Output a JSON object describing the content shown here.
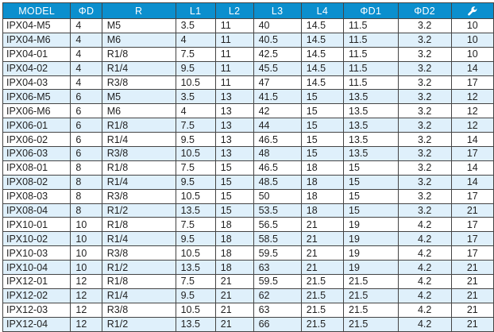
{
  "table": {
    "headers": [
      "MODEL",
      "ΦD",
      "R",
      "L1",
      "L2",
      "L3",
      "L4",
      "ΦD1",
      "ΦD2"
    ],
    "last_header_icon": "wrench-icon",
    "colors": {
      "header_bg": "#0b8fce",
      "stripe_bg": "#dff0fb",
      "border": "#444444"
    },
    "rows": [
      [
        "IPX04-M5",
        "4",
        "M5",
        "3.5",
        "11",
        "40",
        "14.5",
        "11.5",
        "3.2",
        "10"
      ],
      [
        "IPX04-M6",
        "4",
        "M6",
        "4",
        "11",
        "40.5",
        "14.5",
        "11.5",
        "3.2",
        "10"
      ],
      [
        "IPX04-01",
        "4",
        "R1/8",
        "7.5",
        "11",
        "42.5",
        "14.5",
        "11.5",
        "3.2",
        "10"
      ],
      [
        "IPX04-02",
        "4",
        "R1/4",
        "9.5",
        "11",
        "45.5",
        "14.5",
        "11.5",
        "3.2",
        "14"
      ],
      [
        "IPX04-03",
        "4",
        "R3/8",
        "10.5",
        "11",
        "47",
        "14.5",
        "11.5",
        "3.2",
        "17"
      ],
      [
        "IPX06-M5",
        "6",
        "M5",
        "3.5",
        "13",
        "41.5",
        "15",
        "13.5",
        "3.2",
        "12"
      ],
      [
        "IPX06-M6",
        "6",
        "M6",
        "4",
        "13",
        "42",
        "15",
        "13.5",
        "3.2",
        "12"
      ],
      [
        "IPX06-01",
        "6",
        "R1/8",
        "7.5",
        "13",
        "44",
        "15",
        "13.5",
        "3.2",
        "12"
      ],
      [
        "IPX06-02",
        "6",
        "R1/4",
        "9.5",
        "13",
        "46.5",
        "15",
        "13.5",
        "3.2",
        "14"
      ],
      [
        "IPX06-03",
        "6",
        "R3/8",
        "10.5",
        "13",
        "48",
        "15",
        "13.5",
        "3.2",
        "17"
      ],
      [
        "IPX08-01",
        "8",
        "R1/8",
        "7.5",
        "15",
        "46.5",
        "18",
        "15",
        "3.2",
        "14"
      ],
      [
        "IPX08-02",
        "8",
        "R1/4",
        "9.5",
        "15",
        "48.5",
        "18",
        "15",
        "3.2",
        "14"
      ],
      [
        "IPX08-03",
        "8",
        "R3/8",
        "10.5",
        "15",
        "50",
        "18",
        "15",
        "3.2",
        "17"
      ],
      [
        "IPX08-04",
        "8",
        "R1/2",
        "13.5",
        "15",
        "53.5",
        "18",
        "15",
        "3.2",
        "21"
      ],
      [
        "IPX10-01",
        "10",
        "R1/8",
        "7.5",
        "18",
        "56.5",
        "21",
        "19",
        "4.2",
        "17"
      ],
      [
        "IPX10-02",
        "10",
        "R1/4",
        "9.5",
        "18",
        "58.5",
        "21",
        "19",
        "4.2",
        "17"
      ],
      [
        "IPX10-03",
        "10",
        "R3/8",
        "10.5",
        "18",
        "59.5",
        "21",
        "19",
        "4.2",
        "17"
      ],
      [
        "IPX10-04",
        "10",
        "R1/2",
        "13.5",
        "18",
        "63",
        "21",
        "19",
        "4.2",
        "21"
      ],
      [
        "IPX12-01",
        "12",
        "R1/8",
        "7.5",
        "21",
        "59.5",
        "21.5",
        "21.5",
        "4.2",
        "21"
      ],
      [
        "IPX12-02",
        "12",
        "R1/4",
        "9.5",
        "21",
        "62",
        "21.5",
        "21.5",
        "4.2",
        "21"
      ],
      [
        "IPX12-03",
        "12",
        "R3/8",
        "10.5",
        "21",
        "63",
        "21.5",
        "21.5",
        "4.2",
        "21"
      ],
      [
        "IPX12-04",
        "12",
        "R1/2",
        "13.5",
        "21",
        "66",
        "21.5",
        "21.5",
        "4.2",
        "21"
      ]
    ]
  }
}
